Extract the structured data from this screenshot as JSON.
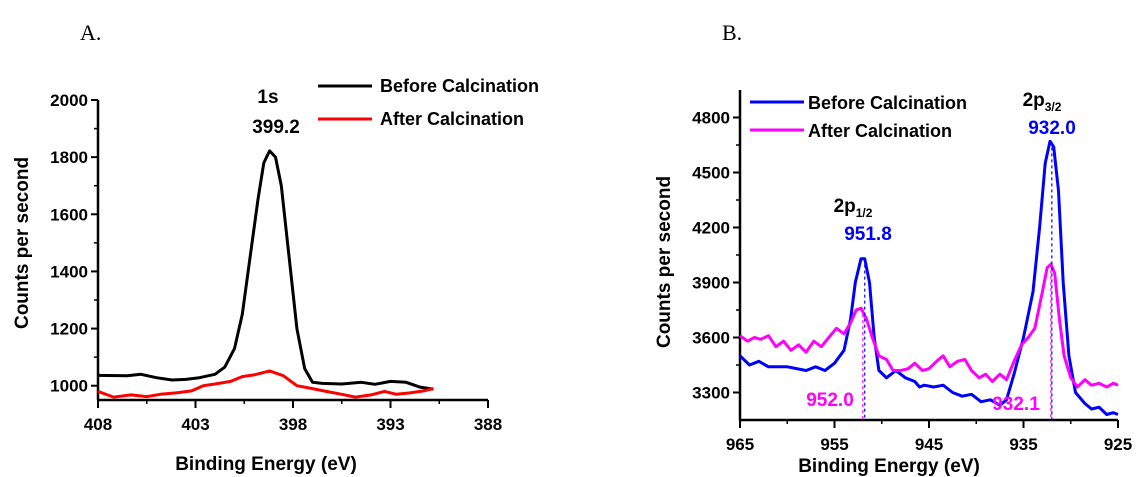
{
  "panels": [
    {
      "label": "A.",
      "chart_data": {
        "type": "line",
        "xlabel": "Binding Energy (eV)",
        "ylabel": "Counts per second",
        "xlim": [
          408,
          388
        ],
        "ylim": [
          950,
          2000
        ],
        "xticks": [
          408,
          403,
          398,
          393,
          388
        ],
        "yticks": [
          1000,
          1200,
          1400,
          1600,
          1800,
          2000
        ],
        "x_reversed": true,
        "grid": false,
        "legend_position": "top-right",
        "series": [
          {
            "name": "Before Calcination",
            "color": "#000000",
            "points": [
              [
                408,
                1036
              ],
              [
                406.5,
                1035
              ],
              [
                405.8,
                1040
              ],
              [
                405,
                1028
              ],
              [
                404.2,
                1020
              ],
              [
                403.5,
                1022
              ],
              [
                402.8,
                1028
              ],
              [
                402,
                1040
              ],
              [
                401.5,
                1065
              ],
              [
                401,
                1130
              ],
              [
                400.6,
                1250
              ],
              [
                400.2,
                1450
              ],
              [
                399.8,
                1650
              ],
              [
                399.5,
                1780
              ],
              [
                399.2,
                1822
              ],
              [
                398.9,
                1800
              ],
              [
                398.6,
                1700
              ],
              [
                398.2,
                1450
              ],
              [
                397.8,
                1200
              ],
              [
                397.4,
                1060
              ],
              [
                397,
                1012
              ],
              [
                396.5,
                1008
              ],
              [
                395.5,
                1006
              ],
              [
                394.5,
                1012
              ],
              [
                393.8,
                1005
              ],
              [
                393,
                1015
              ],
              [
                392.2,
                1012
              ],
              [
                391.5,
                995
              ],
              [
                390.8,
                988
              ]
            ]
          },
          {
            "name": "After Calcination",
            "color": "#ff0000",
            "points": [
              [
                408,
                980
              ],
              [
                407.2,
                960
              ],
              [
                406.3,
                968
              ],
              [
                405.5,
                962
              ],
              [
                404.8,
                970
              ],
              [
                404,
                975
              ],
              [
                403.2,
                982
              ],
              [
                402.6,
                1000
              ],
              [
                402,
                1006
              ],
              [
                401.2,
                1015
              ],
              [
                400.6,
                1032
              ],
              [
                400,
                1038
              ],
              [
                399.2,
                1052
              ],
              [
                398.5,
                1035
              ],
              [
                397.8,
                1000
              ],
              [
                397,
                990
              ],
              [
                396.3,
                980
              ],
              [
                395.5,
                970
              ],
              [
                394.8,
                960
              ],
              [
                394,
                968
              ],
              [
                393.3,
                980
              ],
              [
                392.7,
                970
              ],
              [
                392,
                975
              ],
              [
                391.3,
                982
              ],
              [
                390.8,
                990
              ]
            ]
          }
        ],
        "annotations": [
          {
            "text": "1s",
            "x": 399.2,
            "y": 1822
          },
          {
            "text": "399.2",
            "x": 399.2,
            "y": 1822
          }
        ]
      }
    },
    {
      "label": "B.",
      "chart_data": {
        "type": "line",
        "xlabel": "Binding Energy (eV)",
        "ylabel": "Counts per second",
        "xlim": [
          965,
          925
        ],
        "ylim": [
          3150,
          4950
        ],
        "xticks": [
          965,
          955,
          945,
          935,
          925
        ],
        "yticks": [
          3300,
          3600,
          3900,
          4200,
          4500,
          4800
        ],
        "x_reversed": true,
        "grid": false,
        "legend_position": "top-left",
        "series": [
          {
            "name": "Before Calcination",
            "color": "#0000ff",
            "points": [
              [
                965,
                3500
              ],
              [
                964,
                3450
              ],
              [
                963,
                3470
              ],
              [
                962,
                3440
              ],
              [
                960,
                3440
              ],
              [
                958,
                3420
              ],
              [
                957,
                3440
              ],
              [
                956,
                3420
              ],
              [
                955,
                3460
              ],
              [
                954,
                3530
              ],
              [
                953.3,
                3700
              ],
              [
                952.8,
                3900
              ],
              [
                952.2,
                4030
              ],
              [
                951.8,
                4030
              ],
              [
                951.3,
                3900
              ],
              [
                950.8,
                3600
              ],
              [
                950.3,
                3420
              ],
              [
                949.5,
                3380
              ],
              [
                948.5,
                3420
              ],
              [
                947.5,
                3380
              ],
              [
                946.5,
                3360
              ],
              [
                946,
                3330
              ],
              [
                945.5,
                3340
              ],
              [
                944.5,
                3330
              ],
              [
                943.5,
                3340
              ],
              [
                942.5,
                3300
              ],
              [
                941.5,
                3280
              ],
              [
                940.5,
                3290
              ],
              [
                939.5,
                3250
              ],
              [
                938.5,
                3260
              ],
              [
                937.5,
                3230
              ],
              [
                936.8,
                3260
              ],
              [
                936,
                3400
              ],
              [
                935,
                3600
              ],
              [
                934,
                3850
              ],
              [
                933.3,
                4200
              ],
              [
                932.7,
                4550
              ],
              [
                932.2,
                4670
              ],
              [
                931.8,
                4640
              ],
              [
                931.3,
                4400
              ],
              [
                930.8,
                3900
              ],
              [
                930.2,
                3500
              ],
              [
                929.5,
                3300
              ],
              [
                928.5,
                3240
              ],
              [
                927.8,
                3210
              ],
              [
                927,
                3220
              ],
              [
                926.2,
                3180
              ],
              [
                925.5,
                3190
              ],
              [
                925,
                3180
              ]
            ]
          },
          {
            "name": "After Calcination",
            "color": "#ff00ff",
            "points": [
              [
                965,
                3610
              ],
              [
                964.2,
                3580
              ],
              [
                963.5,
                3600
              ],
              [
                962.8,
                3590
              ],
              [
                962,
                3610
              ],
              [
                961.2,
                3550
              ],
              [
                960.4,
                3580
              ],
              [
                959.6,
                3530
              ],
              [
                958.8,
                3560
              ],
              [
                958,
                3520
              ],
              [
                957.2,
                3580
              ],
              [
                956.4,
                3550
              ],
              [
                955.6,
                3600
              ],
              [
                954.8,
                3650
              ],
              [
                954,
                3620
              ],
              [
                953.3,
                3680
              ],
              [
                952.7,
                3750
              ],
              [
                952.2,
                3760
              ],
              [
                951.6,
                3700
              ],
              [
                951,
                3600
              ],
              [
                950.3,
                3500
              ],
              [
                949.5,
                3480
              ],
              [
                948.8,
                3420
              ],
              [
                948,
                3420
              ],
              [
                947.2,
                3430
              ],
              [
                946.5,
                3460
              ],
              [
                945.7,
                3420
              ],
              [
                945,
                3430
              ],
              [
                944.2,
                3470
              ],
              [
                943.5,
                3500
              ],
              [
                942.8,
                3440
              ],
              [
                942,
                3470
              ],
              [
                941.2,
                3480
              ],
              [
                940.5,
                3420
              ],
              [
                939.7,
                3380
              ],
              [
                939,
                3400
              ],
              [
                938.3,
                3360
              ],
              [
                937.5,
                3400
              ],
              [
                936.8,
                3370
              ],
              [
                936,
                3470
              ],
              [
                935.2,
                3560
              ],
              [
                934.5,
                3600
              ],
              [
                933.8,
                3650
              ],
              [
                933,
                3850
              ],
              [
                932.5,
                3980
              ],
              [
                932.1,
                4000
              ],
              [
                931.7,
                3950
              ],
              [
                931.2,
                3700
              ],
              [
                930.7,
                3500
              ],
              [
                930,
                3380
              ],
              [
                929.3,
                3330
              ],
              [
                928.5,
                3370
              ],
              [
                927.8,
                3340
              ],
              [
                927,
                3350
              ],
              [
                926.2,
                3330
              ],
              [
                925.5,
                3350
              ],
              [
                925,
                3340
              ]
            ]
          }
        ],
        "annotations": [
          {
            "text": "2p",
            "sub": "1/2",
            "x": 951.8,
            "y": 4030
          },
          {
            "text": "951.8",
            "x": 951.8,
            "y": 4030,
            "color": "#0000ff"
          },
          {
            "text": "952.0",
            "x": 952.0,
            "y": 3760,
            "color": "#ff00ff"
          },
          {
            "text": "2p",
            "sub": "3/2",
            "x": 932.0,
            "y": 4670
          },
          {
            "text": "932.0",
            "x": 932.0,
            "y": 4670,
            "color": "#0000ff"
          },
          {
            "text": "932.1",
            "x": 932.1,
            "y": 4000,
            "color": "#ff00ff"
          }
        ]
      }
    }
  ]
}
